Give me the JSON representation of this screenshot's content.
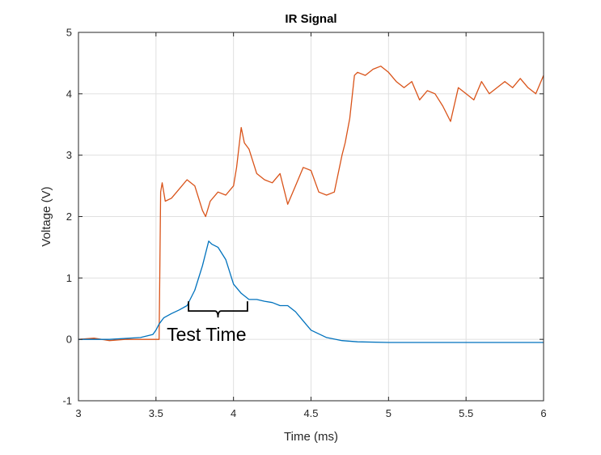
{
  "chart_data": {
    "type": "line",
    "title": "IR Signal",
    "xlabel": "Time (ms)",
    "ylabel": "Voltage (V)",
    "xlim": [
      3,
      6
    ],
    "ylim": [
      -1,
      5
    ],
    "xticks": [
      3,
      3.5,
      4,
      4.5,
      5,
      5.5,
      6
    ],
    "xtick_labels": [
      "3",
      "3.5",
      "4",
      "4.5",
      "5",
      "5.5",
      "6"
    ],
    "yticks": [
      -1,
      0,
      1,
      2,
      3,
      4,
      5
    ],
    "ytick_labels": [
      "-1",
      "0",
      "1",
      "2",
      "3",
      "4",
      "5"
    ],
    "grid": true,
    "series": [
      {
        "color": "#D95319",
        "x": [
          3.0,
          3.1,
          3.2,
          3.3,
          3.4,
          3.5,
          3.52,
          3.53,
          3.54,
          3.56,
          3.6,
          3.65,
          3.7,
          3.75,
          3.8,
          3.82,
          3.85,
          3.9,
          3.95,
          4.0,
          4.02,
          4.05,
          4.07,
          4.1,
          4.15,
          4.2,
          4.25,
          4.3,
          4.35,
          4.4,
          4.45,
          4.5,
          4.55,
          4.6,
          4.65,
          4.7,
          4.72,
          4.75,
          4.78,
          4.8,
          4.85,
          4.9,
          4.95,
          5.0,
          5.05,
          5.1,
          5.15,
          5.2,
          5.25,
          5.3,
          5.35,
          5.4,
          5.45,
          5.5,
          5.55,
          5.6,
          5.65,
          5.7,
          5.75,
          5.8,
          5.85,
          5.9,
          5.95,
          6.0
        ],
        "y": [
          0.0,
          0.02,
          -0.02,
          0.0,
          0.0,
          0.0,
          0.0,
          2.4,
          2.55,
          2.25,
          2.3,
          2.45,
          2.6,
          2.5,
          2.1,
          2.0,
          2.25,
          2.4,
          2.35,
          2.5,
          2.8,
          3.45,
          3.2,
          3.1,
          2.7,
          2.6,
          2.55,
          2.7,
          2.2,
          2.5,
          2.8,
          2.75,
          2.4,
          2.35,
          2.4,
          3.0,
          3.2,
          3.6,
          4.3,
          4.35,
          4.3,
          4.4,
          4.45,
          4.35,
          4.2,
          4.1,
          4.2,
          3.9,
          4.05,
          4.0,
          3.8,
          3.55,
          4.1,
          4.0,
          3.9,
          4.2,
          4.0,
          4.1,
          4.2,
          4.1,
          4.25,
          4.1,
          4.0,
          4.3
        ]
      },
      {
        "color": "#0072BD",
        "x": [
          3.0,
          3.2,
          3.4,
          3.48,
          3.5,
          3.52,
          3.55,
          3.6,
          3.65,
          3.7,
          3.75,
          3.8,
          3.84,
          3.86,
          3.9,
          3.95,
          4.0,
          4.05,
          4.1,
          4.15,
          4.2,
          4.25,
          4.3,
          4.35,
          4.4,
          4.45,
          4.5,
          4.6,
          4.7,
          4.8,
          5.0,
          5.5,
          6.0
        ],
        "y": [
          0.0,
          0.0,
          0.03,
          0.08,
          0.15,
          0.25,
          0.35,
          0.42,
          0.48,
          0.55,
          0.8,
          1.2,
          1.6,
          1.55,
          1.5,
          1.3,
          0.9,
          0.75,
          0.65,
          0.65,
          0.62,
          0.6,
          0.55,
          0.55,
          0.45,
          0.3,
          0.15,
          0.03,
          -0.02,
          -0.04,
          -0.05,
          -0.05,
          -0.05
        ]
      }
    ],
    "annotation": {
      "text": "Test Time",
      "x_start": 3.71,
      "x_end": 4.09,
      "y": 0.62
    }
  }
}
